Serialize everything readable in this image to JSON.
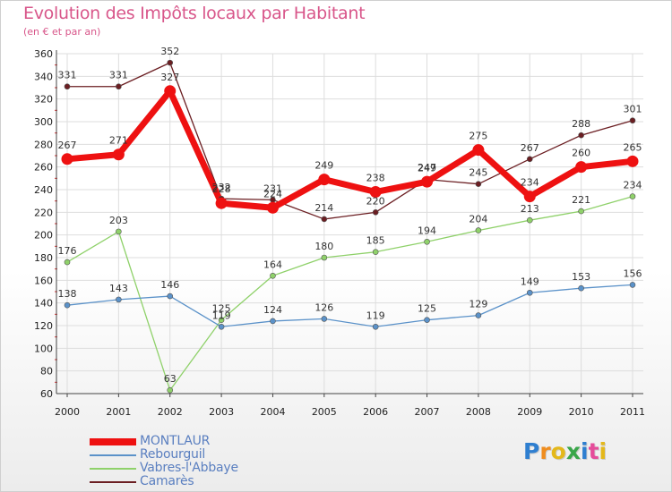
{
  "chart_data": {
    "type": "line",
    "title": "Evolution des Impôts locaux par Habitant",
    "subtitle": "(en € et par an)",
    "categories": [
      "2000",
      "2001",
      "2002",
      "2003",
      "2004",
      "2005",
      "2006",
      "2007",
      "2008",
      "2009",
      "2010",
      "2011"
    ],
    "ylim": [
      60,
      360
    ],
    "yticks": [
      60,
      80,
      100,
      120,
      140,
      160,
      180,
      200,
      220,
      240,
      260,
      280,
      300,
      320,
      340,
      360
    ],
    "grid": true,
    "series": [
      {
        "name": "MONTLAUR",
        "color": "#ee1111",
        "values": [
          267,
          271,
          327,
          228,
          224,
          249,
          238,
          247,
          275,
          234,
          260,
          265
        ]
      },
      {
        "name": "Rebourguil",
        "color": "#5b92c9",
        "values": [
          138,
          143,
          146,
          119,
          124,
          126,
          119,
          125,
          129,
          149,
          153,
          156
        ]
      },
      {
        "name": "Vabres-l'Abbaye",
        "color": "#8fd16a",
        "values": [
          176,
          203,
          63,
          125,
          164,
          180,
          185,
          194,
          204,
          213,
          221,
          234
        ]
      },
      {
        "name": "Camarès",
        "color": "#6b1e22",
        "values": [
          331,
          331,
          352,
          232,
          231,
          214,
          220,
          249,
          245,
          267,
          288,
          301
        ]
      }
    ]
  },
  "logo": {
    "letters": [
      "P",
      "r",
      "o",
      "x",
      "i",
      "t",
      "i"
    ],
    "colors": [
      "#2f7fd0",
      "#ef8d1f",
      "#e4b81b",
      "#3aa64a",
      "#2f7fd0",
      "#e54c9a",
      "#e4b81b"
    ]
  }
}
